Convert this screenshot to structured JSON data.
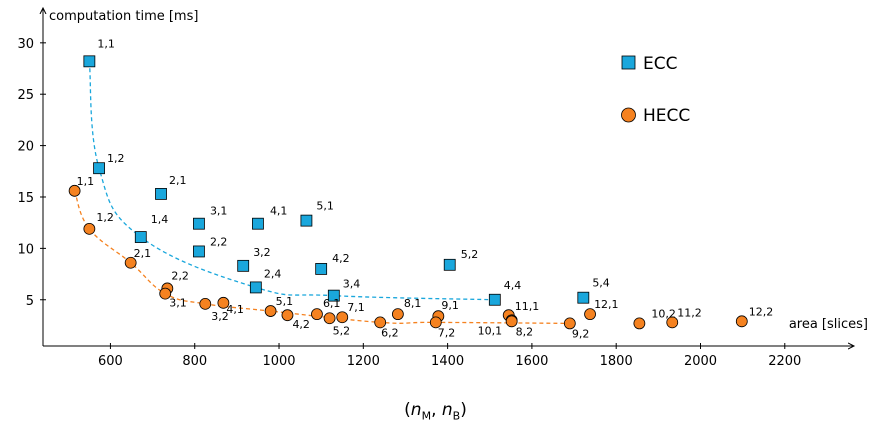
{
  "chart_data": {
    "type": "scatter",
    "xlabel": "area [slices]",
    "ylabel": "computation time [ms]",
    "xlim": [
      440,
      2350
    ],
    "ylim": [
      0.5,
      33
    ],
    "xticks": [
      600,
      800,
      1000,
      1200,
      1400,
      1600,
      1800,
      2000,
      2200
    ],
    "yticks": [
      5,
      10,
      15,
      20,
      25,
      30
    ],
    "grid": false,
    "legend_position": "right",
    "caption": "(nM, nB)",
    "series": [
      {
        "name": "ECC",
        "marker": "square",
        "color": "#1aa7dc",
        "points": [
          {
            "x": 550,
            "y": 28.2,
            "label": "1,1"
          },
          {
            "x": 573,
            "y": 17.8,
            "label": "1,2"
          },
          {
            "x": 672,
            "y": 11.1,
            "label": "1,4"
          },
          {
            "x": 720,
            "y": 15.3,
            "label": "2,1"
          },
          {
            "x": 810,
            "y": 9.7,
            "label": "2,2"
          },
          {
            "x": 810,
            "y": 12.4,
            "label": "3,1"
          },
          {
            "x": 915,
            "y": 8.3,
            "label": "3,2"
          },
          {
            "x": 945,
            "y": 6.2,
            "label": "2,4"
          },
          {
            "x": 950,
            "y": 12.4,
            "label": "4,1"
          },
          {
            "x": 1065,
            "y": 12.7,
            "label": "5,1"
          },
          {
            "x": 1100,
            "y": 8.0,
            "label": "4,2"
          },
          {
            "x": 1130,
            "y": 5.4,
            "label": "3,4"
          },
          {
            "x": 1405,
            "y": 8.4,
            "label": "5,2"
          },
          {
            "x": 1512,
            "y": 5.0,
            "label": "4,4"
          },
          {
            "x": 1722,
            "y": 5.2,
            "label": "5,4"
          }
        ]
      },
      {
        "name": "HECC",
        "marker": "circle",
        "color": "#f58220",
        "points": [
          {
            "x": 515,
            "y": 15.6,
            "label": "1,1"
          },
          {
            "x": 550,
            "y": 11.9,
            "label": "1,2"
          },
          {
            "x": 648,
            "y": 8.6,
            "label": "2,1"
          },
          {
            "x": 735,
            "y": 6.1,
            "label": "2,2"
          },
          {
            "x": 730,
            "y": 5.6,
            "label": "3,1"
          },
          {
            "x": 825,
            "y": 4.6,
            "label": "3,2"
          },
          {
            "x": 868,
            "y": 4.7,
            "label": "4,1"
          },
          {
            "x": 980,
            "y": 3.9,
            "label": "5,1"
          },
          {
            "x": 1020,
            "y": 3.5,
            "label": "4,2"
          },
          {
            "x": 1090,
            "y": 3.6,
            "label": "6,1"
          },
          {
            "x": 1120,
            "y": 3.2,
            "label": "5,2"
          },
          {
            "x": 1150,
            "y": 3.3,
            "label": "7,1"
          },
          {
            "x": 1240,
            "y": 2.8,
            "label": "6,2"
          },
          {
            "x": 1282,
            "y": 3.6,
            "label": "8,1"
          },
          {
            "x": 1378,
            "y": 3.4,
            "label": "9,1"
          },
          {
            "x": 1372,
            "y": 2.8,
            "label": "7,2"
          },
          {
            "x": 1545,
            "y": 3.5,
            "label": "11,1"
          },
          {
            "x": 1552,
            "y": 3.0,
            "label": "10,1"
          },
          {
            "x": 1552,
            "y": 2.9,
            "label": "8,2"
          },
          {
            "x": 1690,
            "y": 2.7,
            "label": "9,2"
          },
          {
            "x": 1738,
            "y": 3.6,
            "label": "12,1"
          },
          {
            "x": 1855,
            "y": 2.7,
            "label": "10,2"
          },
          {
            "x": 1933,
            "y": 2.8,
            "label": "11,2"
          },
          {
            "x": 2098,
            "y": 2.9,
            "label": "12,2"
          }
        ]
      }
    ],
    "trend_lines": [
      {
        "series": "ECC",
        "style": "dashed",
        "color": "#1aa7dc",
        "points": [
          [
            550,
            28.2
          ],
          [
            573,
            17.8
          ],
          [
            672,
            11.1
          ],
          [
            945,
            6.2
          ],
          [
            1130,
            5.4
          ],
          [
            1512,
            5.0
          ]
        ]
      },
      {
        "series": "HECC",
        "style": "dashed",
        "color": "#f58220",
        "points": [
          [
            515,
            15.6
          ],
          [
            550,
            11.9
          ],
          [
            648,
            8.6
          ],
          [
            730,
            5.6
          ],
          [
            825,
            4.6
          ],
          [
            980,
            3.9
          ],
          [
            1240,
            2.8
          ],
          [
            1372,
            2.8
          ],
          [
            1690,
            2.7
          ]
        ]
      }
    ]
  }
}
